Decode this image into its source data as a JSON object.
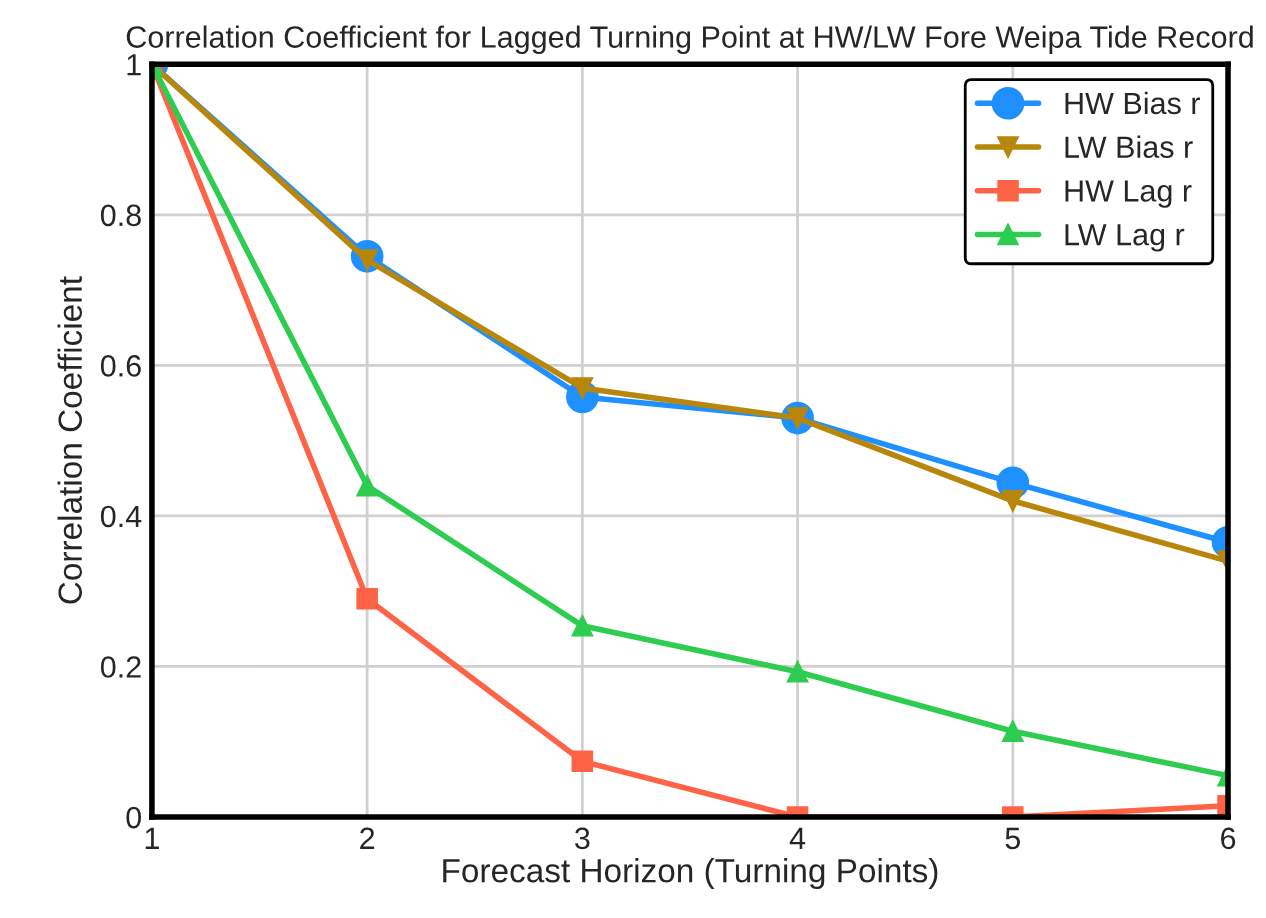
{
  "chart_data": {
    "type": "line",
    "title": "Correlation Coefficient for Lagged Turning Point at HW/LW Fore Weipa Tide Record",
    "xlabel": "Forecast Horizon (Turning Points)",
    "ylabel": "Correlation Coefficient",
    "x": [
      1,
      2,
      3,
      4,
      5,
      6
    ],
    "series": [
      {
        "name": "HW Bias r",
        "color": "#1e90ff",
        "marker": "circle",
        "values": [
          1,
          0.745,
          0.558,
          0.53,
          0.444,
          0.365
        ]
      },
      {
        "name": "LW Bias r",
        "color": "#b8860b",
        "marker": "triangle_down",
        "values": [
          1,
          0.74,
          0.57,
          0.53,
          0.42,
          0.34
        ]
      },
      {
        "name": "HW Lag r",
        "color": "#ff6347",
        "marker": "square",
        "values": [
          1,
          0.29,
          0.074,
          0,
          0,
          0.015
        ]
      },
      {
        "name": "LW Lag r",
        "color": "#2ecc50",
        "marker": "triangle",
        "values": [
          1,
          0.44,
          0.254,
          0.193,
          0.114,
          0.055
        ]
      }
    ],
    "xlim": [
      1,
      6
    ],
    "ylim": [
      0,
      1
    ],
    "xticks": [
      1,
      2,
      3,
      4,
      5,
      6
    ],
    "yticks": [
      0,
      0.2,
      0.4,
      0.6,
      0.8,
      1
    ],
    "grid": true,
    "legend": "top right",
    "line_style": "solid"
  }
}
